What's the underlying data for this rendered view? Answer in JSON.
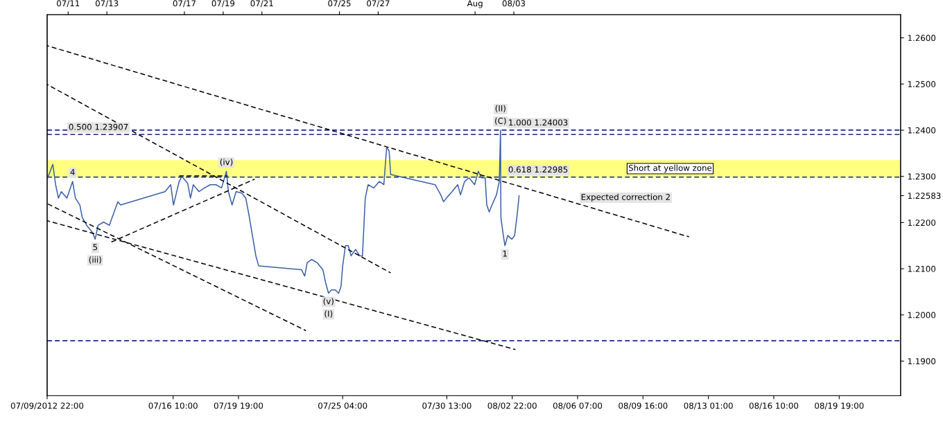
{
  "chart_data": {
    "type": "line",
    "xlim": [
      "2012-07-09T22:00",
      "2012-08-22T23:00"
    ],
    "xticks": [
      {
        "value": "2012-07-09T22:00",
        "label": "07/09/2012 22:00"
      },
      {
        "value": "2012-07-16T10:00",
        "label": "07/16 10:00"
      },
      {
        "value": "2012-07-19T19:00",
        "label": "07/19 19:00"
      },
      {
        "value": "2012-07-25T04:00",
        "label": "07/25 04:00"
      },
      {
        "value": "2012-07-30T13:00",
        "label": "07/30 13:00"
      },
      {
        "value": "2012-08-02T22:00",
        "label": "08/02 22:00"
      },
      {
        "value": "2012-08-06T07:00",
        "label": "08/06 07:00"
      },
      {
        "value": "2012-08-09T16:00",
        "label": "08/09 16:00"
      },
      {
        "value": "2012-08-13T01:00",
        "label": "08/13 01:00"
      },
      {
        "value": "2012-08-16T10:00",
        "label": "08/16 10:00"
      },
      {
        "value": "2012-08-19T19:00",
        "label": "08/19 19:00"
      }
    ],
    "x2lim": [
      "2012-07-09T22:00",
      "2012-08-22T23:00"
    ],
    "x2ticks": [
      {
        "value": "2012-07-11",
        "label": "07/11"
      },
      {
        "value": "2012-07-13",
        "label": "07/13"
      },
      {
        "value": "2012-07-17",
        "label": "07/17"
      },
      {
        "value": "2012-07-19",
        "label": "07/19"
      },
      {
        "value": "2012-07-21",
        "label": "07/21"
      },
      {
        "value": "2012-07-25",
        "label": "07/25"
      },
      {
        "value": "2012-07-27",
        "label": "07/27"
      },
      {
        "value": "2012-08-01",
        "label": "Aug"
      },
      {
        "value": "2012-08-03",
        "label": "08/03"
      }
    ],
    "ylim": [
      1.1825,
      1.265
    ],
    "yticks": [
      {
        "value": 1.19,
        "label": "1.1900"
      },
      {
        "value": 1.2,
        "label": "1.2000"
      },
      {
        "value": 1.21,
        "label": "1.2100"
      },
      {
        "value": 1.22,
        "label": "1.2200"
      },
      {
        "value": 1.22583,
        "label": "1.22583"
      },
      {
        "value": 1.23,
        "label": "1.2300"
      },
      {
        "value": 1.24,
        "label": "1.2400"
      },
      {
        "value": 1.25,
        "label": "1.2500"
      },
      {
        "value": 1.26,
        "label": "1.2600"
      }
    ],
    "grid": false,
    "series": [
      {
        "color": "#3a5fa8",
        "line_style": "solid",
        "x": [
          "2012-07-09T22:00",
          "2012-07-10T05:00",
          "2012-07-10T08:30",
          "2012-07-10T12:00",
          "2012-07-10T15:30",
          "2012-07-10T22:30",
          "2012-07-11T05:30",
          "2012-07-11T09:00",
          "2012-07-11T14:30",
          "2012-07-11T17:30",
          "2012-07-11T23:00",
          "2012-07-12T06:00",
          "2012-07-12T09:30",
          "2012-07-12T13:00",
          "2012-07-12T20:00",
          "2012-07-13T03:00",
          "2012-07-13T09:00",
          "2012-07-13T13:30",
          "2012-07-13T17:00",
          "2012-07-16T00:00",
          "2012-07-16T07:00",
          "2012-07-16T10:30",
          "2012-07-16T17:30",
          "2012-07-16T21:00",
          "2012-07-17T04:00",
          "2012-07-17T07:30",
          "2012-07-17T11:00",
          "2012-07-17T18:00",
          "2012-07-18T01:00",
          "2012-07-18T08:00",
          "2012-07-18T15:00",
          "2012-07-18T22:00",
          "2012-07-19T04:00",
          "2012-07-19T06:30",
          "2012-07-19T11:00",
          "2012-07-19T16:00",
          "2012-07-19T23:00",
          "2012-07-20T04:00",
          "2012-07-20T08:00",
          "2012-07-20T13:00",
          "2012-07-20T16:30",
          "2012-07-20T20:00",
          "2012-07-23T01:00",
          "2012-07-23T05:00",
          "2012-07-23T08:00",
          "2012-07-23T13:30",
          "2012-07-23T20:30",
          "2012-07-24T03:30",
          "2012-07-24T07:00",
          "2012-07-24T10:30",
          "2012-07-24T14:00",
          "2012-07-24T19:00",
          "2012-07-24T23:00",
          "2012-07-25T02:00",
          "2012-07-25T04:00",
          "2012-07-25T07:30",
          "2012-07-25T11:00",
          "2012-07-25T14:30",
          "2012-07-25T20:00",
          "2012-07-26T01:00",
          "2012-07-26T04:30",
          "2012-07-26T08:00",
          "2012-07-26T11:30",
          "2012-07-26T18:30",
          "2012-07-27T01:30",
          "2012-07-27T07:00",
          "2012-07-27T10:30",
          "2012-07-27T13:30",
          "2012-07-27T15:30",
          "2012-07-29T22:30",
          "2012-07-30T05:30",
          "2012-07-30T09:00",
          "2012-07-30T12:30",
          "2012-07-30T19:30",
          "2012-07-31T02:30",
          "2012-07-31T06:00",
          "2012-07-31T11:00",
          "2012-07-31T16:30",
          "2012-07-31T23:30",
          "2012-08-01T04:00",
          "2012-08-01T08:00",
          "2012-08-01T12:30",
          "2012-08-01T14:30",
          "2012-08-01T17:30",
          "2012-08-01T21:00",
          "2012-08-02T02:30",
          "2012-08-02T06:00",
          "2012-08-02T07:30",
          "2012-08-02T08:00",
          "2012-08-02T11:00",
          "2012-08-02T13:00",
          "2012-08-02T16:30",
          "2012-08-02T21:30",
          "2012-08-03T01:00",
          "2012-08-03T04:30",
          "2012-08-03T06:30"
        ],
        "values": [
          1.2294,
          1.2326,
          1.2282,
          1.2253,
          1.2267,
          1.2253,
          1.2289,
          1.2253,
          1.2238,
          1.2211,
          1.2194,
          1.2179,
          1.2164,
          1.2194,
          1.2201,
          1.2194,
          1.2223,
          1.2245,
          1.2238,
          1.2267,
          1.2282,
          1.2238,
          1.2289,
          1.23,
          1.2285,
          1.2253,
          1.2282,
          1.2267,
          1.2275,
          1.2282,
          1.2282,
          1.2275,
          1.2311,
          1.2267,
          1.2238,
          1.2267,
          1.2264,
          1.2253,
          1.2216,
          1.2164,
          1.2128,
          1.2106,
          1.2098,
          1.2084,
          1.2113,
          1.212,
          1.2113,
          1.2098,
          1.2069,
          1.2047,
          1.2054,
          1.2054,
          1.2047,
          1.2062,
          1.2106,
          1.215,
          1.215,
          1.2128,
          1.2142,
          1.2128,
          1.2128,
          1.2253,
          1.2282,
          1.2275,
          1.2289,
          1.2282,
          1.2363,
          1.2355,
          1.2304,
          1.2282,
          1.226,
          1.2245,
          1.2253,
          1.2267,
          1.2282,
          1.226,
          1.2289,
          1.2297,
          1.2282,
          1.2311,
          1.2297,
          1.2297,
          1.2238,
          1.2223,
          1.2238,
          1.226,
          1.2289,
          1.24,
          1.2211,
          1.2172,
          1.215,
          1.2172,
          1.2164,
          1.2172,
          1.2223,
          1.2258
        ]
      },
      {
        "color": "#000000",
        "line_style": "dashed",
        "x": [
          "2012-07-09T22:00",
          "2012-08-12T01:00"
        ],
        "values": [
          1.2583,
          1.2169
        ]
      },
      {
        "color": "#000000",
        "line_style": "dashed",
        "x": [
          "2012-07-09T22:00",
          "2012-07-27T15:30"
        ],
        "values": [
          1.2499,
          1.2091
        ]
      },
      {
        "color": "#000000",
        "line_style": "dashed",
        "x": [
          "2012-07-09T22:00",
          "2012-07-23T06:30"
        ],
        "values": [
          1.2241,
          1.1966
        ]
      },
      {
        "color": "#000000",
        "line_style": "dashed",
        "x": [
          "2012-07-09T22:00",
          "2012-08-03T02:00"
        ],
        "values": [
          1.2204,
          1.1925
        ]
      },
      {
        "color": "#000000",
        "line_style": "dashed",
        "x": [
          "2012-07-13T04:30",
          "2012-07-20T15:00"
        ],
        "values": [
          1.2157,
          1.2294
        ]
      },
      {
        "color": "#000000",
        "line_style": "dashed",
        "x": [
          "2012-07-16T17:30",
          "2012-07-19T05:30"
        ],
        "values": [
          1.2301,
          1.2301
        ]
      }
    ],
    "ref_lines": [
      {
        "axis": "y",
        "value": 1.24003,
        "color": "#1a237e",
        "line_style": "dashed"
      },
      {
        "axis": "y",
        "value": 1.23907,
        "color": "#1a237e",
        "line_style": "dashed"
      },
      {
        "axis": "y",
        "value": 1.22985,
        "color": "#1a237e",
        "line_style": "dashed"
      },
      {
        "axis": "y",
        "value": 1.1944,
        "color": "#1a237e",
        "line_style": "dashed"
      }
    ],
    "bands": [
      {
        "axis": "y",
        "from": 1.22985,
        "to": 1.2335,
        "label": "Short at yellow zone",
        "color": "#ffff80"
      }
    ],
    "annotations": [
      {
        "text": "0.500 1.23907",
        "x": "2012-07-11T00:30",
        "y": 1.23907
      },
      {
        "text": "1.000 1.24003",
        "x": "2012-08-02T17:00",
        "y": 1.24003
      },
      {
        "text": "0.618 1.22985",
        "x": "2012-08-02T17:00",
        "y": 1.22985
      },
      {
        "text": "4",
        "x": "2012-07-11T05:30",
        "y": 1.2289
      },
      {
        "text": "5",
        "x": "2012-07-12T09:30",
        "y": 1.2164
      },
      {
        "text": "(iii)",
        "x": "2012-07-12T09:30",
        "y": 1.2164
      },
      {
        "text": "(iv)",
        "x": "2012-07-19T04:00",
        "y": 1.2311
      },
      {
        "text": "(v)",
        "x": "2012-07-24T10:30",
        "y": 1.2047
      },
      {
        "text": "(I)",
        "x": "2012-07-24T10:30",
        "y": 1.2047
      },
      {
        "text": "(II)",
        "x": "2012-08-02T07:30",
        "y": 1.24
      },
      {
        "text": "(C)",
        "x": "2012-08-02T07:30",
        "y": 1.24
      },
      {
        "text": "1",
        "x": "2012-08-02T13:00",
        "y": 1.215
      },
      {
        "text": "Expected correction 2",
        "x": "2012-08-06T11:00",
        "y": 1.2239
      }
    ]
  }
}
